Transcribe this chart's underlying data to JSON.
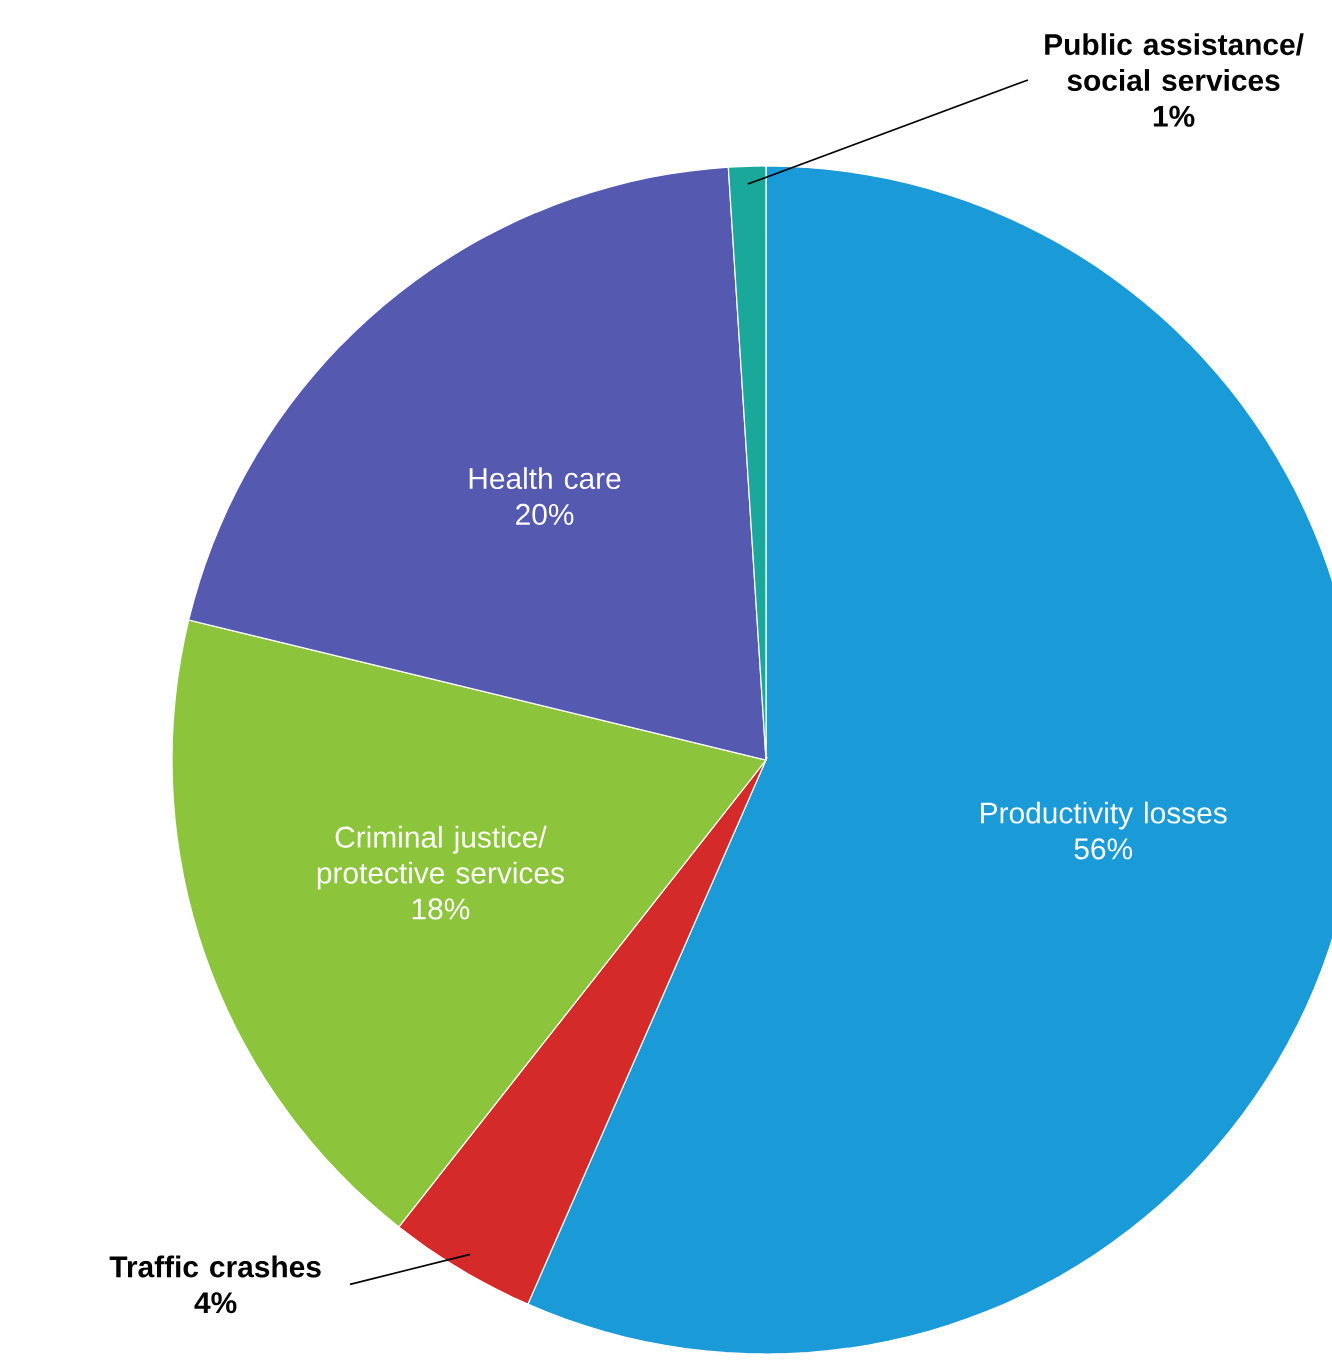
{
  "chart_data": {
    "type": "pie",
    "categories": [
      "Productivity losses",
      "Traffic crashes",
      "Criminal justice/ protective services",
      "Health care",
      "Public assistance/ social services"
    ],
    "values": [
      56,
      4,
      18,
      20,
      1
    ],
    "value_labels": [
      "56%",
      "4%",
      "18%",
      "20%",
      "1%"
    ],
    "colors": [
      "#1a9ad6",
      "#d42a2a",
      "#8cc43c",
      "#5559b0",
      "#1aa89a"
    ]
  }
}
